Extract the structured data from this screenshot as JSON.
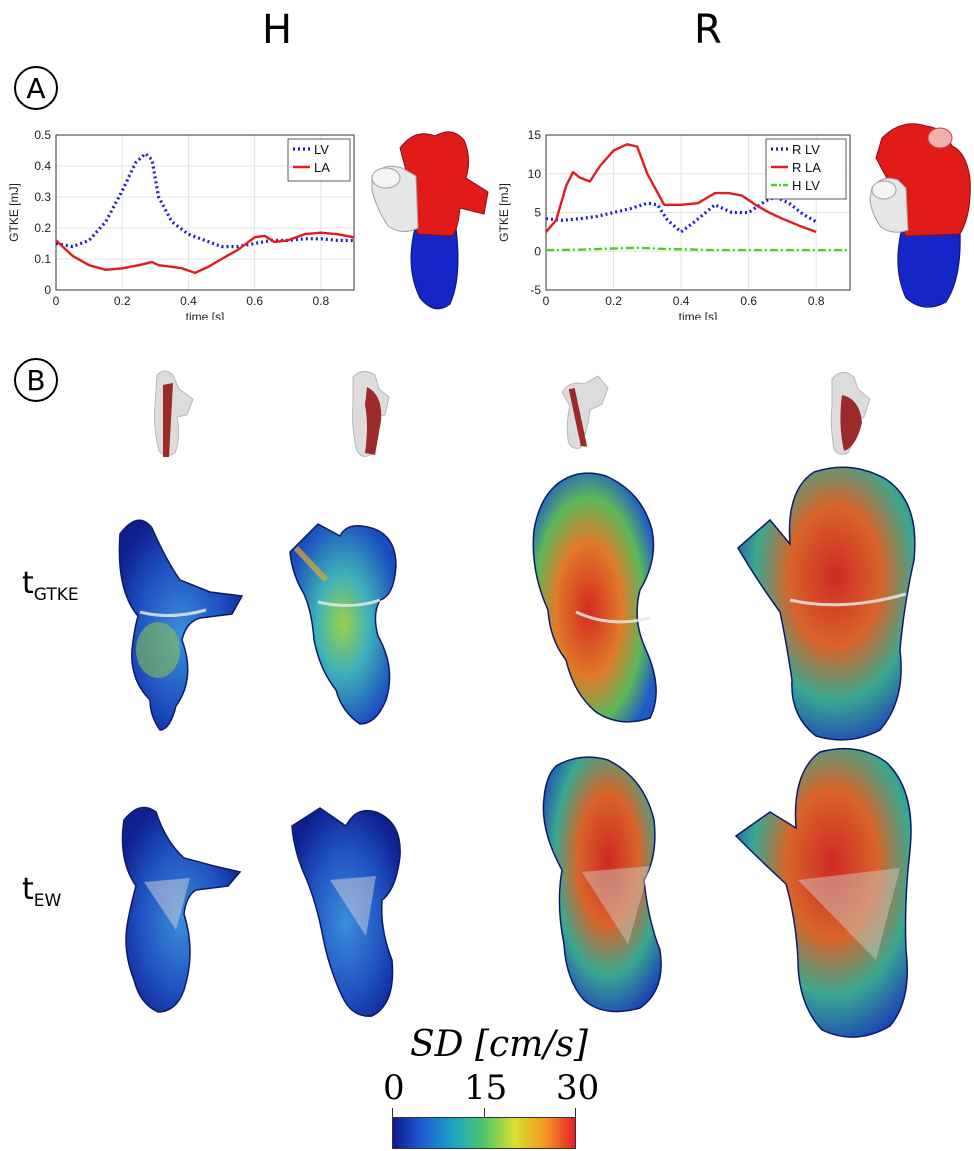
{
  "columns": {
    "left": "H",
    "right": "R"
  },
  "panel_labels": {
    "a": "A",
    "b": "B"
  },
  "row_labels": [
    {
      "main": "t",
      "sub": "GTKE"
    },
    {
      "main": "t",
      "sub": "EW"
    }
  ],
  "colorbar": {
    "title": "SD [cm/s]",
    "min": "0",
    "mid": "15",
    "max": "30",
    "colors": [
      "#0b1a8c",
      "#1f5fd6",
      "#1aa6c4",
      "#52c46a",
      "#d8e030",
      "#f29a22",
      "#e8202a"
    ]
  },
  "chart_data": [
    {
      "type": "line",
      "ylabel": "GTKE [mJ]",
      "xlabel": "time [s]",
      "xlim": [
        0,
        0.9
      ],
      "ylim": [
        0,
        0.5
      ],
      "xticks": [
        "0",
        "0.2",
        "0.4",
        "0.6",
        "0.8"
      ],
      "yticks": [
        "0",
        "0.1",
        "0.2",
        "0.3",
        "0.4",
        "0.5"
      ],
      "grid": true,
      "legend_position": "top-right",
      "series": [
        {
          "name": "LV",
          "color": "#1c1cd8",
          "style": "dotted",
          "x": [
            0,
            0.05,
            0.1,
            0.15,
            0.2,
            0.24,
            0.27,
            0.29,
            0.31,
            0.35,
            0.4,
            0.45,
            0.5,
            0.55,
            0.6,
            0.65,
            0.7,
            0.75,
            0.8,
            0.85,
            0.9
          ],
          "y": [
            0.15,
            0.14,
            0.16,
            0.22,
            0.32,
            0.41,
            0.44,
            0.42,
            0.3,
            0.22,
            0.18,
            0.16,
            0.14,
            0.14,
            0.15,
            0.16,
            0.16,
            0.165,
            0.165,
            0.16,
            0.16
          ]
        },
        {
          "name": "LA",
          "color": "#e01c1c",
          "style": "solid",
          "x": [
            0,
            0.05,
            0.1,
            0.15,
            0.2,
            0.25,
            0.29,
            0.31,
            0.35,
            0.38,
            0.42,
            0.46,
            0.5,
            0.55,
            0.6,
            0.63,
            0.66,
            0.7,
            0.75,
            0.8,
            0.85,
            0.9
          ],
          "y": [
            0.16,
            0.11,
            0.08,
            0.065,
            0.07,
            0.08,
            0.09,
            0.08,
            0.075,
            0.07,
            0.055,
            0.075,
            0.1,
            0.13,
            0.17,
            0.175,
            0.155,
            0.16,
            0.18,
            0.185,
            0.18,
            0.17
          ]
        }
      ]
    },
    {
      "type": "line",
      "ylabel": "GTKE [mJ]",
      "xlabel": "time [s]",
      "xlim": [
        0,
        0.9
      ],
      "ylim": [
        -5,
        15
      ],
      "xticks": [
        "0",
        "0.2",
        "0.4",
        "0.6",
        "0.8"
      ],
      "yticks": [
        "-5",
        "0",
        "5",
        "10",
        "15"
      ],
      "grid": true,
      "legend_position": "top-right",
      "series": [
        {
          "name": "R LV",
          "color": "#1c1cd8",
          "style": "dotted",
          "x": [
            0,
            0.05,
            0.1,
            0.15,
            0.2,
            0.25,
            0.3,
            0.33,
            0.36,
            0.4,
            0.44,
            0.5,
            0.55,
            0.6,
            0.65,
            0.68,
            0.72,
            0.76,
            0.8
          ],
          "y": [
            4.2,
            4,
            4.2,
            4.5,
            5,
            5.5,
            6.2,
            6,
            4,
            2.5,
            3.8,
            6,
            5,
            5,
            6.5,
            7,
            6.2,
            4.8,
            3.8
          ]
        },
        {
          "name": "R LA",
          "color": "#e01c1c",
          "style": "solid",
          "x": [
            0,
            0.03,
            0.06,
            0.08,
            0.1,
            0.13,
            0.16,
            0.2,
            0.24,
            0.27,
            0.3,
            0.35,
            0.4,
            0.45,
            0.5,
            0.54,
            0.58,
            0.62,
            0.66,
            0.7,
            0.75,
            0.8
          ],
          "y": [
            2.5,
            4,
            8.5,
            10.2,
            9.5,
            9,
            11,
            13,
            13.8,
            13.5,
            10,
            6,
            6,
            6.2,
            7.5,
            7.5,
            7.2,
            6,
            5,
            4.2,
            3.3,
            2.5
          ]
        },
        {
          "name": "H LV",
          "color": "#4cd11a",
          "style": "dashdot",
          "x": [
            0,
            0.1,
            0.2,
            0.27,
            0.35,
            0.5,
            0.65,
            0.8,
            0.9
          ],
          "y": [
            0.15,
            0.2,
            0.35,
            0.45,
            0.3,
            0.15,
            0.15,
            0.15,
            0.15
          ]
        }
      ]
    }
  ]
}
